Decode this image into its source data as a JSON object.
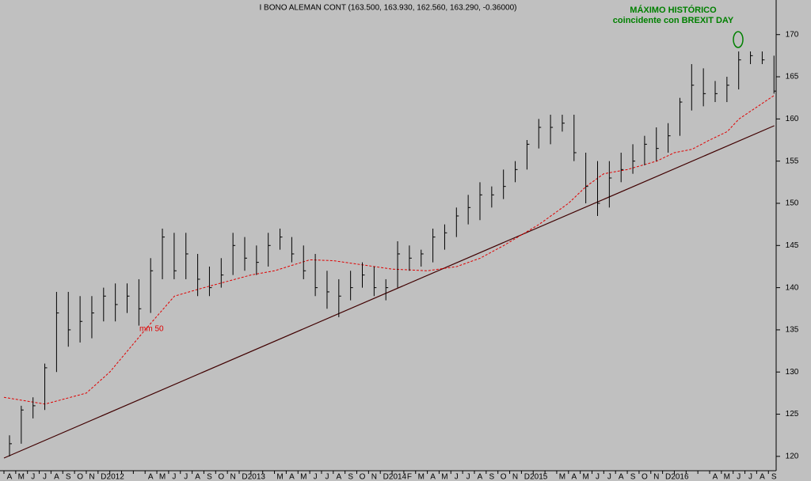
{
  "chart_data": {
    "type": "ohlc",
    "title": "I BONO ALEMAN CONT (163.500, 163.930, 162.560, 163.290, -0.36000)",
    "categories": [
      "A",
      "M",
      "J",
      "J",
      "A",
      "S",
      "O",
      "N",
      "D",
      "2012",
      null,
      null,
      "A",
      "M",
      "J",
      "J",
      "A",
      "S",
      "O",
      "N",
      "D",
      "2013",
      null,
      "M",
      "A",
      "M",
      "J",
      "J",
      "A",
      "S",
      "O",
      "N",
      "D",
      "2014",
      "F",
      "M",
      "A",
      "M",
      "J",
      "J",
      "A",
      "S",
      "O",
      "N",
      "D",
      "2015",
      null,
      "M",
      "A",
      "M",
      "J",
      "J",
      "A",
      "S",
      "O",
      "N",
      "D",
      "2016",
      null,
      null,
      "A",
      "M",
      "J",
      "J",
      "A",
      "S"
    ],
    "high": [
      122.5,
      126,
      127,
      131,
      139.5,
      139.5,
      139,
      139,
      140,
      140.5,
      140.5,
      141,
      143.5,
      147,
      146.5,
      146.5,
      144,
      142.5,
      143.5,
      146.5,
      146,
      145,
      146.5,
      147,
      146,
      145,
      144,
      142,
      141,
      142,
      143,
      142.5,
      141,
      145.5,
      145,
      144.5,
      147,
      147.5,
      149.5,
      151,
      152.5,
      152,
      154,
      155,
      157.5,
      160,
      160.5,
      160.5,
      160.5,
      156,
      155,
      155,
      156,
      157,
      158,
      159,
      159.5,
      162.5,
      166.5,
      166,
      164.5,
      165,
      168,
      168,
      168,
      167.5
    ],
    "low": [
      120,
      121.5,
      124.5,
      125.5,
      130,
      133,
      133.5,
      134,
      136,
      136,
      137,
      135.5,
      137,
      141,
      141,
      141,
      139,
      139,
      140,
      141.5,
      142,
      141.5,
      142.5,
      144.5,
      143,
      141,
      139,
      137.5,
      136.5,
      138.5,
      140,
      139,
      138.5,
      140,
      142,
      142.5,
      143,
      144.5,
      146,
      147.5,
      148,
      149.5,
      150.5,
      152.5,
      154,
      156.5,
      157,
      158.5,
      155,
      150,
      148.5,
      149.5,
      152.5,
      153.5,
      154.5,
      155,
      156,
      158,
      161,
      161.5,
      162,
      162,
      163.5,
      166.5,
      166.5,
      163
    ],
    "close": [
      121.5,
      125.5,
      126,
      130.5,
      137,
      135,
      136,
      137,
      139,
      138,
      139,
      137.5,
      142,
      146,
      142,
      144,
      141,
      140,
      141.5,
      145,
      143.5,
      143,
      145,
      146,
      144,
      142,
      140,
      139.5,
      139,
      140,
      141.5,
      140,
      140,
      144,
      143.5,
      144,
      146,
      146.5,
      148.5,
      149.5,
      151,
      151,
      152,
      154,
      157,
      159,
      159,
      159.5,
      156,
      152,
      150,
      153,
      154,
      155,
      157,
      156.5,
      158,
      162,
      164,
      163,
      163,
      164,
      167,
      167.5,
      167,
      163.3
    ],
    "color": "#000000",
    "moving_average": {
      "name": "mm 50",
      "color": "#e00000",
      "x": [
        0,
        3.5,
        7,
        9,
        12,
        14.5,
        17,
        21,
        23,
        26,
        28,
        30,
        33,
        36,
        38.5,
        40.5,
        42.5,
        45.5,
        48,
        49.5,
        51,
        53,
        55.5,
        57,
        58.5,
        60,
        61.5,
        62.5,
        65.5
      ],
      "values": [
        127,
        126.2,
        127.5,
        130,
        135,
        139,
        140,
        141.5,
        142,
        143.3,
        143.2,
        142.8,
        142.2,
        142,
        142.5,
        143.5,
        145,
        147.5,
        150,
        152,
        153.5,
        154,
        155,
        156,
        156.4,
        157.5,
        158.5,
        160,
        162.8
      ]
    },
    "trend_line": {
      "color": "#400000",
      "x": [
        0,
        65.5
      ],
      "values": [
        119.8,
        159.2
      ]
    },
    "annotations": [
      {
        "text": "MÁXIMO HISTÓRICO"
      },
      {
        "text": "coincidente con BREXIT DAY"
      }
    ],
    "ylim": [
      118.3,
      174.1
    ],
    "yticks": [
      120,
      125,
      130,
      135,
      140,
      145,
      150,
      155,
      160,
      165,
      170
    ]
  }
}
